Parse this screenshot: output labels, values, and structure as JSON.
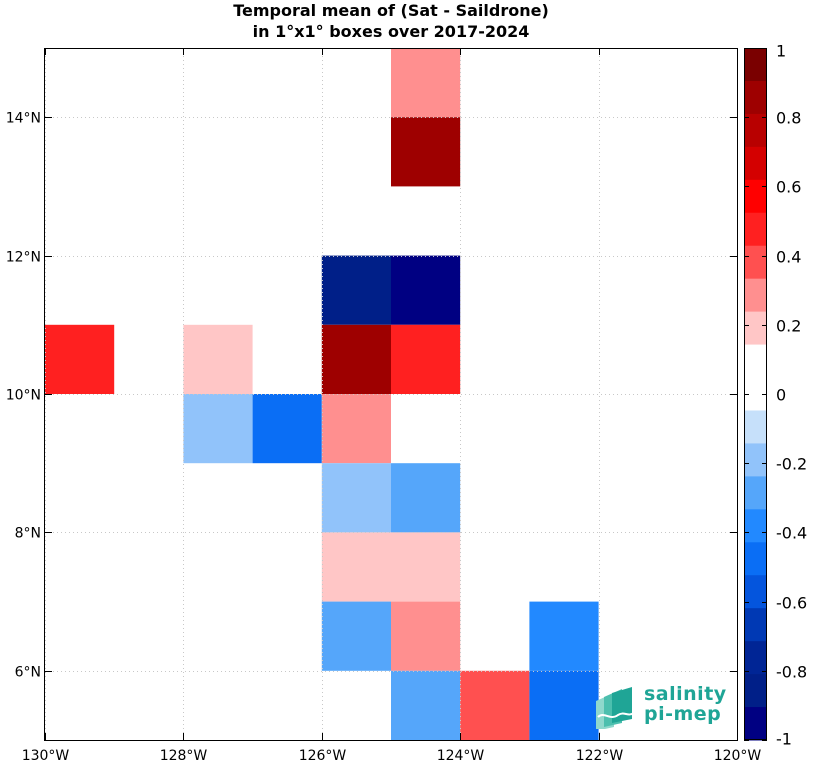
{
  "chart_data": {
    "type": "heatmap",
    "title_line1": "Temporal mean of (Sat - Saildrone)",
    "title_line2": "in 1°x1° boxes over 2017-2024",
    "xlim": [
      -130,
      -120
    ],
    "ylim": [
      5,
      15
    ],
    "x_ticks": [
      {
        "value": -130,
        "label": "130°W"
      },
      {
        "value": -128,
        "label": "128°W"
      },
      {
        "value": -126,
        "label": "126°W"
      },
      {
        "value": -124,
        "label": "124°W"
      },
      {
        "value": -122,
        "label": "122°W"
      },
      {
        "value": -120,
        "label": "120°W"
      }
    ],
    "y_ticks": [
      {
        "value": 6,
        "label": "6°N"
      },
      {
        "value": 8,
        "label": "8°N"
      },
      {
        "value": 10,
        "label": "10°N"
      },
      {
        "value": 12,
        "label": "12°N"
      },
      {
        "value": 14,
        "label": "14°N"
      }
    ],
    "grid": true,
    "cells": [
      {
        "lon": -125,
        "lat": 14,
        "value": 0.25
      },
      {
        "lon": -125,
        "lat": 13,
        "value": 0.85
      },
      {
        "lon": -126,
        "lat": 11,
        "value": -0.85
      },
      {
        "lon": -125,
        "lat": 11,
        "value": -1.0
      },
      {
        "lon": -130,
        "lat": 10,
        "value": 0.45
      },
      {
        "lon": -128,
        "lat": 10,
        "value": 0.15
      },
      {
        "lon": -126,
        "lat": 10,
        "value": 0.85
      },
      {
        "lon": -125,
        "lat": 10,
        "value": 0.45
      },
      {
        "lon": -128,
        "lat": 9,
        "value": -0.15
      },
      {
        "lon": -127,
        "lat": 9,
        "value": -0.45
      },
      {
        "lon": -126,
        "lat": 9,
        "value": 0.25
      },
      {
        "lon": -126,
        "lat": 8,
        "value": -0.15
      },
      {
        "lon": -125,
        "lat": 8,
        "value": -0.25
      },
      {
        "lon": -126,
        "lat": 7,
        "value": 0.15
      },
      {
        "lon": -125,
        "lat": 7,
        "value": 0.15
      },
      {
        "lon": -126,
        "lat": 6,
        "value": -0.25
      },
      {
        "lon": -125,
        "lat": 6,
        "value": 0.25
      },
      {
        "lon": -123,
        "lat": 6,
        "value": -0.35
      },
      {
        "lon": -125,
        "lat": 5,
        "value": -0.25
      },
      {
        "lon": -124,
        "lat": 5,
        "value": 0.35
      },
      {
        "lon": -123,
        "lat": 5,
        "value": -0.45
      }
    ],
    "colorbar": {
      "range": [
        -1,
        1
      ],
      "tick_values": [
        1,
        0.8,
        0.6,
        0.4,
        0.2,
        0,
        -0.2,
        -0.4,
        -0.6,
        -0.8,
        -1
      ],
      "tick_labels": [
        "1",
        "0.8",
        "0.6",
        "0.4",
        "0.2",
        "0",
        "-0.2",
        "-0.4",
        "-0.6",
        "-0.8",
        "-1"
      ],
      "colors_top_to_bottom": [
        "#7a0000",
        "#9e0000",
        "#b80000",
        "#d40000",
        "#ff0000",
        "#ff2020",
        "#ff5050",
        "#ff8f8f",
        "#ffc6c6",
        "#ffffff",
        "#ffffff",
        "#c6e0fa",
        "#91c3fa",
        "#55a6fa",
        "#2289ff",
        "#0a6ef5",
        "#0455dd",
        "#0039b4",
        "#002595",
        "#001f88",
        "#000082"
      ]
    }
  },
  "logo": {
    "word1": "salinity",
    "word2": "pi-mep",
    "color": "#1fa596"
  }
}
